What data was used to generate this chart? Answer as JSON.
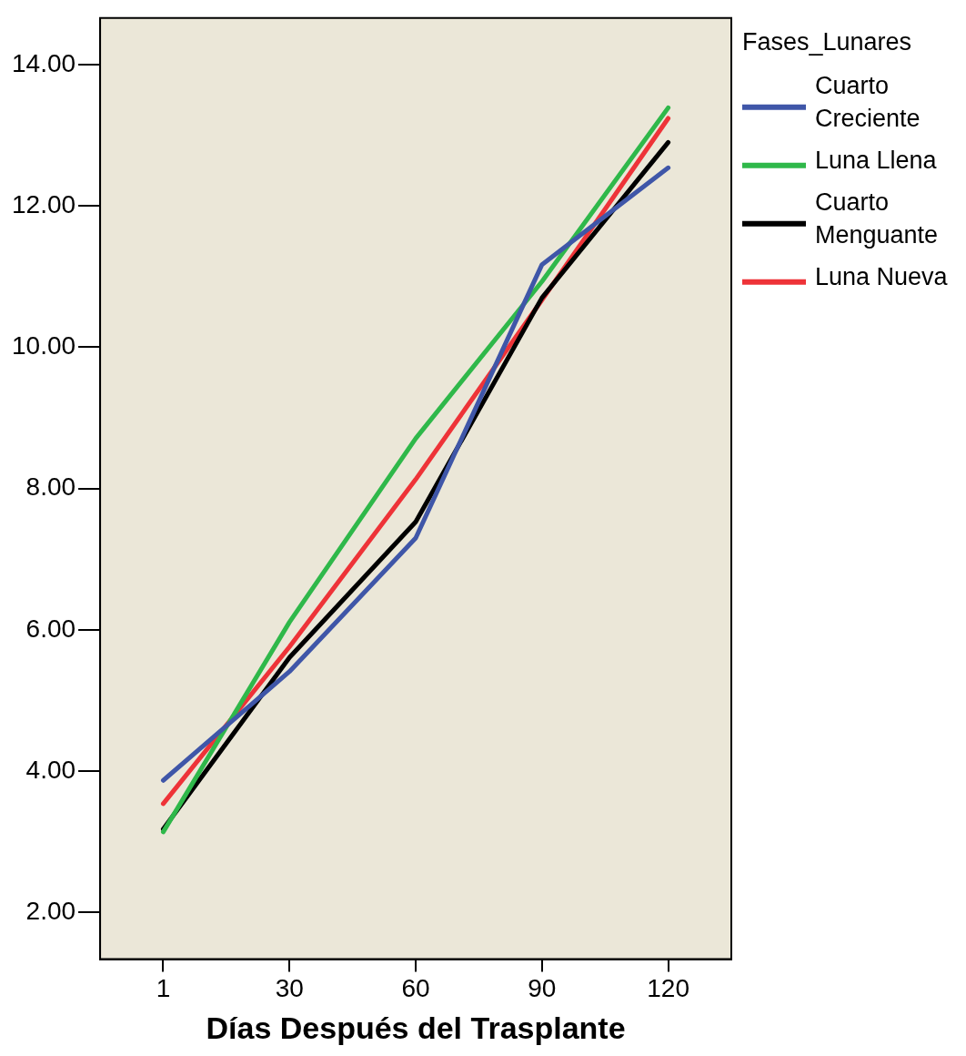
{
  "chart_data": {
    "type": "line",
    "xlabel": "Días Después del Trasplante",
    "legend_title": "Fases_Lunares",
    "categories": [
      "1",
      "30",
      "60",
      "90",
      "120"
    ],
    "series": [
      {
        "name": "Cuarto Creciente",
        "color": "#3f56a8",
        "values": [
          3.87,
          5.41,
          7.3,
          11.17,
          12.54
        ]
      },
      {
        "name": "Luna Llena",
        "color": "#2fb84a",
        "values": [
          3.14,
          6.11,
          8.71,
          10.93,
          13.39
        ]
      },
      {
        "name": "Cuarto Menguante",
        "color": "#000000",
        "values": [
          3.18,
          5.61,
          7.53,
          10.7,
          12.9
        ]
      },
      {
        "name": "Luna Nueva",
        "color": "#ee3338",
        "values": [
          3.54,
          5.76,
          8.13,
          10.67,
          13.24
        ]
      }
    ],
    "ylim": [
      1.34,
      14.66
    ],
    "yticks": [
      {
        "value": 2,
        "label": "2.00"
      },
      {
        "value": 4,
        "label": "4.00"
      },
      {
        "value": 6,
        "label": "6.00"
      },
      {
        "value": 8,
        "label": "8.00"
      },
      {
        "value": 10,
        "label": "10.00"
      },
      {
        "value": 12,
        "label": "12.00"
      },
      {
        "value": 14,
        "label": "14.00"
      }
    ],
    "legend": "right",
    "marker": "none",
    "line_style": "solid"
  }
}
